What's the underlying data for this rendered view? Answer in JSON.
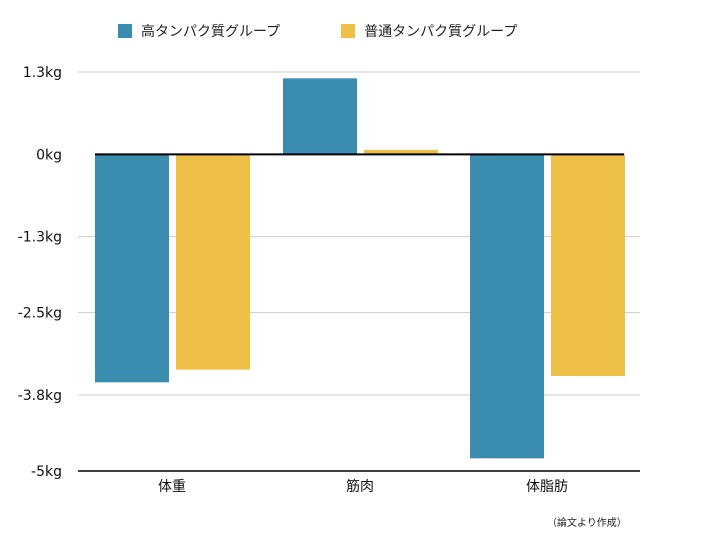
{
  "chart_data": {
    "type": "bar",
    "categories": [
      "体重",
      "筋肉",
      "体脂肪"
    ],
    "series": [
      {
        "name": "高タンパク質グループ",
        "color": "#3a8daf",
        "values": [
          -3.6,
          1.2,
          -4.8
        ]
      },
      {
        "name": "普通タンパク質グループ",
        "color": "#eec048",
        "values": [
          -3.4,
          0.07,
          -3.5
        ]
      }
    ],
    "ylim": [
      -5,
      1.3
    ],
    "yticks": [
      1.3,
      0,
      -1.3,
      -2.5,
      -3.8,
      -5
    ],
    "ytick_labels": [
      "1.3kg",
      "0kg",
      "-1.3kg",
      "-2.5kg",
      "-3.8kg",
      "-5kg"
    ],
    "grid": true,
    "legend_position": "top-left",
    "source_note": "（論文より作成）"
  }
}
